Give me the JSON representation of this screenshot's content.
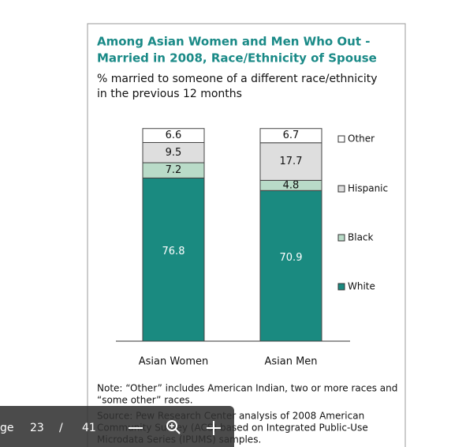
{
  "chart_data": {
    "type": "stacked_bar",
    "title": [
      "Among Asian Women and Men Who Out -",
      "Married in 2008, Race/Ethnicity of Spouse"
    ],
    "subtitle": [
      "% married to someone of a different race/ethnicity",
      "in the previous 12 months"
    ],
    "categories": [
      "Asian Women",
      "Asian Men"
    ],
    "series": [
      {
        "name": "White",
        "color": "#1a8a80",
        "values": [
          76.8,
          70.9
        ]
      },
      {
        "name": "Black",
        "color": "#b9dbc8",
        "values": [
          7.2,
          4.8
        ]
      },
      {
        "name": "Hispanic",
        "color": "#dedede",
        "values": [
          9.5,
          17.7
        ]
      },
      {
        "name": "Other",
        "color": "#ffffff",
        "values": [
          6.6,
          6.7
        ]
      }
    ],
    "ylim": [
      0,
      100
    ],
    "note": [
      "Note: “Other” includes American Indian, two or more races and",
      "“some other” races."
    ],
    "source": [
      "Source: Pew Research Center analysis of 2008 American",
      "Community Survey (ACS) based on Integrated Public-Use",
      "Microdata Series (IPUMS) samples."
    ]
  },
  "toolbar": {
    "page_label": "ge",
    "current_page": "23",
    "separator": "/",
    "total_pages": "41"
  }
}
